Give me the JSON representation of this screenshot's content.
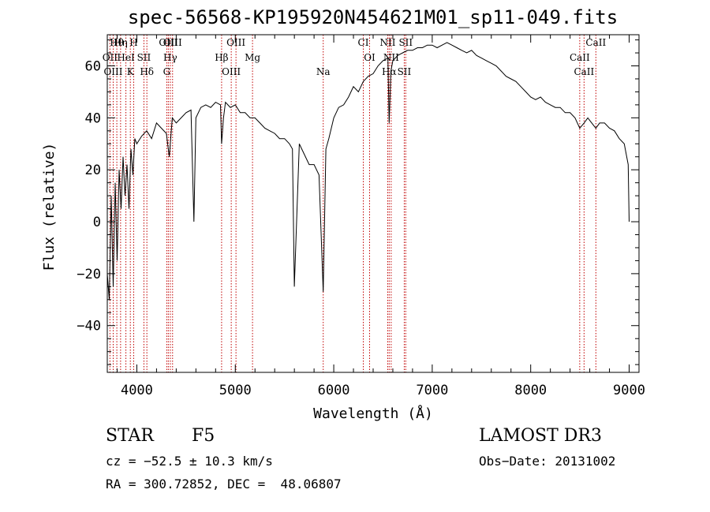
{
  "chart_data": {
    "type": "line",
    "title": "spec-56568-KP195920N454621M01_sp11-049.fits",
    "xlabel": "Wavelength (Å)",
    "ylabel": "Flux (relative)",
    "xlim": [
      3700,
      9100
    ],
    "ylim": [
      -58,
      72
    ],
    "xticks": [
      4000,
      5000,
      6000,
      7000,
      8000,
      9000
    ],
    "yticks": [
      -40,
      -20,
      0,
      20,
      40,
      60
    ],
    "grid": false,
    "series": [
      {
        "x": [
          3700,
          3720,
          3740,
          3760,
          3780,
          3800,
          3820,
          3840,
          3860,
          3880,
          3900,
          3920,
          3940,
          3960,
          3980,
          4000,
          4050,
          4100,
          4150,
          4200,
          4250,
          4300,
          4330,
          4360,
          4400,
          4450,
          4500,
          4550,
          4580,
          4600,
          4650,
          4700,
          4750,
          4800,
          4850,
          4861,
          4880,
          4900,
          4950,
          5000,
          5050,
          5100,
          5150,
          5200,
          5250,
          5300,
          5350,
          5400,
          5450,
          5500,
          5550,
          5580,
          5600,
          5650,
          5700,
          5750,
          5800,
          5850,
          5893,
          5920,
          5950,
          6000,
          6050,
          6100,
          6150,
          6200,
          6250,
          6300,
          6350,
          6400,
          6450,
          6500,
          6550,
          6563,
          6580,
          6600,
          6650,
          6700,
          6750,
          6800,
          6850,
          6900,
          6950,
          7000,
          7050,
          7100,
          7150,
          7200,
          7250,
          7300,
          7350,
          7400,
          7450,
          7500,
          7550,
          7600,
          7650,
          7700,
          7750,
          7800,
          7850,
          7900,
          7950,
          8000,
          8050,
          8100,
          8150,
          8200,
          8250,
          8300,
          8350,
          8400,
          8450,
          8498,
          8542,
          8580,
          8620,
          8662,
          8700,
          8750,
          8800,
          8850,
          8900,
          8950,
          8990,
          9000
        ],
        "y": [
          -20,
          -30,
          10,
          -25,
          15,
          -15,
          20,
          5,
          25,
          10,
          22,
          5,
          28,
          18,
          32,
          30,
          33,
          35,
          32,
          38,
          36,
          34,
          25,
          40,
          38,
          40,
          42,
          43,
          0,
          40,
          44,
          45,
          44,
          46,
          45,
          30,
          40,
          46,
          44,
          45,
          42,
          42,
          40,
          40,
          38,
          36,
          35,
          34,
          32,
          32,
          30,
          28,
          -25,
          30,
          26,
          22,
          22,
          18,
          -27,
          28,
          32,
          40,
          44,
          45,
          48,
          52,
          50,
          54,
          56,
          57,
          60,
          62,
          63,
          38,
          58,
          62,
          64,
          65,
          66,
          66,
          67,
          67,
          68,
          68,
          67,
          68,
          69,
          68,
          67,
          66,
          65,
          66,
          64,
          63,
          62,
          61,
          60,
          58,
          56,
          55,
          54,
          52,
          50,
          48,
          47,
          48,
          46,
          45,
          44,
          44,
          42,
          42,
          40,
          36,
          38,
          40,
          38,
          36,
          38,
          38,
          36,
          35,
          32,
          30,
          22,
          0
        ]
      }
    ],
    "lines": [
      {
        "label": "Hθ",
        "x": 3797
      },
      {
        "label": "OII",
        "x": 3727
      },
      {
        "label": "OIII",
        "x": 3760
      },
      {
        "label": "Hη",
        "x": 3835
      },
      {
        "label": "HeI",
        "x": 3889
      },
      {
        "label": "K",
        "x": 3934
      },
      {
        "label": "H",
        "x": 3968
      },
      {
        "label": "SII",
        "x": 4072
      },
      {
        "label": "Hδ",
        "x": 4102
      },
      {
        "label": "OIII",
        "x": 4320
      },
      {
        "label": "Hγ",
        "x": 4340
      },
      {
        "label": "G",
        "x": 4304
      },
      {
        "label": "OIII",
        "x": 4363
      },
      {
        "label": "Hβ",
        "x": 4861
      },
      {
        "label": "OIII",
        "x": 4959
      },
      {
        "label": "OIII",
        "x": 5007
      },
      {
        "label": "Mg",
        "x": 5175
      },
      {
        "label": "Na",
        "x": 5893
      },
      {
        "label": "CI",
        "x": 6300
      },
      {
        "label": "OI",
        "x": 6364
      },
      {
        "label": "Hα",
        "x": 6563
      },
      {
        "label": "NII",
        "x": 6548
      },
      {
        "label": "NII",
        "x": 6583
      },
      {
        "label": "SII",
        "x": 6716
      },
      {
        "label": "SII",
        "x": 6731
      },
      {
        "label": "CaII",
        "x": 8498
      },
      {
        "label": "CaII",
        "x": 8542
      },
      {
        "label": "CaII",
        "x": 8662
      }
    ]
  },
  "info": {
    "class": "STAR",
    "subclass": "F5",
    "survey": "LAMOST DR3",
    "cz": "cz = −52.5 ± 10.3 km/s",
    "obs_date": "Obs−Date: 20131002",
    "coords": "RA = 300.72852, DEC =  48.06807"
  }
}
